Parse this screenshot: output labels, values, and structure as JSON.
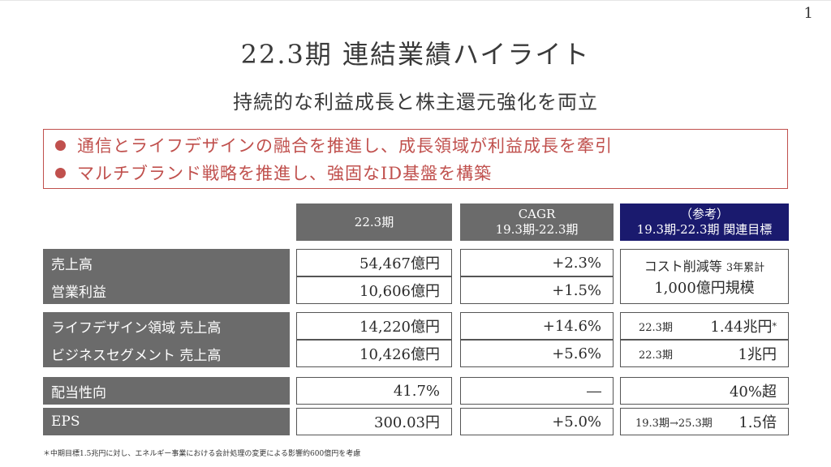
{
  "page_number": "1",
  "title": "22.3期 連結業績ハイライト",
  "subtitle": "持続的な利益成長と株主還元強化を両立",
  "bullets": [
    "通信とライフデザインの融合を推進し、成長領域が利益成長を牽引",
    "マルチブランド戦略を推進し、強固なID基盤を構築"
  ],
  "accent_color": "#c0504d",
  "header": {
    "col1": "22.3期",
    "col2_line1": "CAGR",
    "col2_line2": "19.3期-22.3期",
    "col3_line1": "（参考）",
    "col3_line2": "19.3期-22.3期 関連目標"
  },
  "rows": [
    {
      "label": "売上高",
      "value": "54,467億円",
      "cagr": "+2.3%"
    },
    {
      "label": "営業利益",
      "value": "10,606億円",
      "cagr": "+1.5%"
    },
    {
      "label": "ライフデザイン領域 売上高",
      "value": "14,220億円",
      "cagr": "+14.6%"
    },
    {
      "label": "ビジネスセグメント 売上高",
      "value": "10,426億円",
      "cagr": "+5.6%"
    },
    {
      "label": "配当性向",
      "value": "41.7%",
      "cagr": "―"
    },
    {
      "label": "EPS",
      "value": "300.03円",
      "cagr": "+5.0%"
    }
  ],
  "targets": {
    "cost_line1": "コスト削減等",
    "cost_line1_small": "3年累計",
    "cost_line2": "1,000億円規模",
    "ld_prefix": "22.3期",
    "ld_value": "1.44兆円",
    "ld_mark": "*",
    "biz_prefix": "22.3期",
    "biz_value": "1兆円",
    "payout": "40%超",
    "eps_prefix": "19.3期→25.3期",
    "eps_value": "1.5倍"
  },
  "footnote": "＊中期目標1.5兆円に対し、エネルギー事業における会計処理の変更による影響約600億円を考慮"
}
